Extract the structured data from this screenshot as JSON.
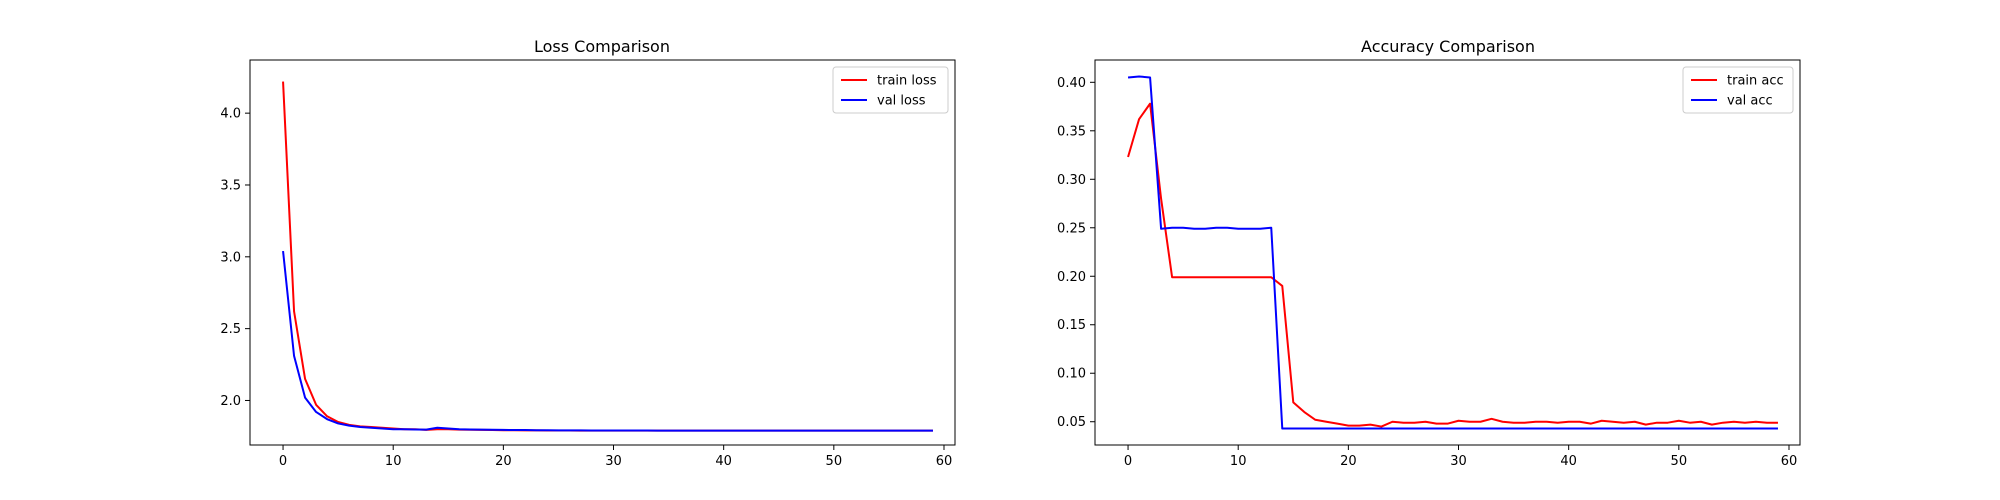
{
  "chart_data": [
    {
      "type": "line",
      "title": "Loss Comparison",
      "xlabel": "",
      "ylabel": "",
      "xlim": [
        -3,
        61
      ],
      "ylim": [
        1.69,
        4.37
      ],
      "xticks": [
        0,
        10,
        20,
        30,
        40,
        50,
        60
      ],
      "yticks": [
        2.0,
        2.5,
        3.0,
        3.5,
        4.0
      ],
      "ytick_labels": [
        "2.0",
        "2.5",
        "3.0",
        "3.5",
        "4.0"
      ],
      "grid": false,
      "legend_position": "top-right",
      "series": [
        {
          "name": "train loss",
          "color": "#ff0000",
          "values": [
            4.22,
            2.62,
            2.15,
            1.97,
            1.89,
            1.85,
            1.83,
            1.82,
            1.815,
            1.81,
            1.805,
            1.8,
            1.8,
            1.795,
            1.8,
            1.8,
            1.797,
            1.796,
            1.795,
            1.794,
            1.793,
            1.793,
            1.792,
            1.792,
            1.791,
            1.791,
            1.791,
            1.79,
            1.79,
            1.79,
            1.79,
            1.79,
            1.79,
            1.79,
            1.79,
            1.79,
            1.79,
            1.79,
            1.79,
            1.79,
            1.79,
            1.79,
            1.79,
            1.79,
            1.79,
            1.79,
            1.79,
            1.79,
            1.79,
            1.79,
            1.79,
            1.79,
            1.79,
            1.79,
            1.79,
            1.79,
            1.79,
            1.79,
            1.79,
            1.79
          ]
        },
        {
          "name": "val loss",
          "color": "#0000ff",
          "values": [
            3.04,
            2.31,
            2.02,
            1.92,
            1.87,
            1.84,
            1.825,
            1.815,
            1.81,
            1.805,
            1.8,
            1.8,
            1.798,
            1.797,
            1.81,
            1.805,
            1.8,
            1.798,
            1.797,
            1.796,
            1.795,
            1.794,
            1.794,
            1.793,
            1.793,
            1.792,
            1.792,
            1.792,
            1.791,
            1.791,
            1.791,
            1.791,
            1.791,
            1.791,
            1.79,
            1.79,
            1.79,
            1.79,
            1.79,
            1.79,
            1.79,
            1.79,
            1.79,
            1.79,
            1.79,
            1.79,
            1.79,
            1.79,
            1.79,
            1.79,
            1.79,
            1.79,
            1.79,
            1.79,
            1.79,
            1.79,
            1.79,
            1.79,
            1.79,
            1.79
          ]
        }
      ]
    },
    {
      "type": "line",
      "title": "Accuracy Comparison",
      "xlabel": "",
      "ylabel": "",
      "xlim": [
        -3,
        61
      ],
      "ylim": [
        0.026,
        0.423
      ],
      "xticks": [
        0,
        10,
        20,
        30,
        40,
        50,
        60
      ],
      "yticks": [
        0.05,
        0.1,
        0.15,
        0.2,
        0.25,
        0.3,
        0.35,
        0.4
      ],
      "ytick_labels": [
        "0.05",
        "0.10",
        "0.15",
        "0.20",
        "0.25",
        "0.30",
        "0.35",
        "0.40"
      ],
      "grid": false,
      "legend_position": "top-right",
      "series": [
        {
          "name": "train acc",
          "color": "#ff0000",
          "values": [
            0.323,
            0.362,
            0.378,
            0.28,
            0.199,
            0.199,
            0.199,
            0.199,
            0.199,
            0.199,
            0.199,
            0.199,
            0.199,
            0.199,
            0.19,
            0.07,
            0.06,
            0.052,
            0.05,
            0.048,
            0.046,
            0.046,
            0.047,
            0.045,
            0.05,
            0.049,
            0.049,
            0.05,
            0.048,
            0.048,
            0.051,
            0.05,
            0.05,
            0.053,
            0.05,
            0.049,
            0.049,
            0.05,
            0.05,
            0.049,
            0.05,
            0.05,
            0.048,
            0.051,
            0.05,
            0.049,
            0.05,
            0.047,
            0.049,
            0.049,
            0.051,
            0.049,
            0.05,
            0.047,
            0.049,
            0.05,
            0.049,
            0.05,
            0.049,
            0.049
          ]
        },
        {
          "name": "val acc",
          "color": "#0000ff",
          "values": [
            0.405,
            0.406,
            0.405,
            0.249,
            0.25,
            0.25,
            0.249,
            0.249,
            0.25,
            0.25,
            0.249,
            0.249,
            0.249,
            0.25,
            0.043,
            0.043,
            0.043,
            0.043,
            0.043,
            0.043,
            0.043,
            0.043,
            0.043,
            0.043,
            0.043,
            0.043,
            0.043,
            0.043,
            0.043,
            0.043,
            0.043,
            0.043,
            0.043,
            0.043,
            0.043,
            0.043,
            0.043,
            0.043,
            0.043,
            0.043,
            0.043,
            0.043,
            0.043,
            0.043,
            0.043,
            0.043,
            0.043,
            0.043,
            0.043,
            0.043,
            0.043,
            0.043,
            0.043,
            0.043,
            0.043,
            0.043,
            0.043,
            0.043,
            0.043,
            0.043
          ]
        }
      ]
    }
  ]
}
